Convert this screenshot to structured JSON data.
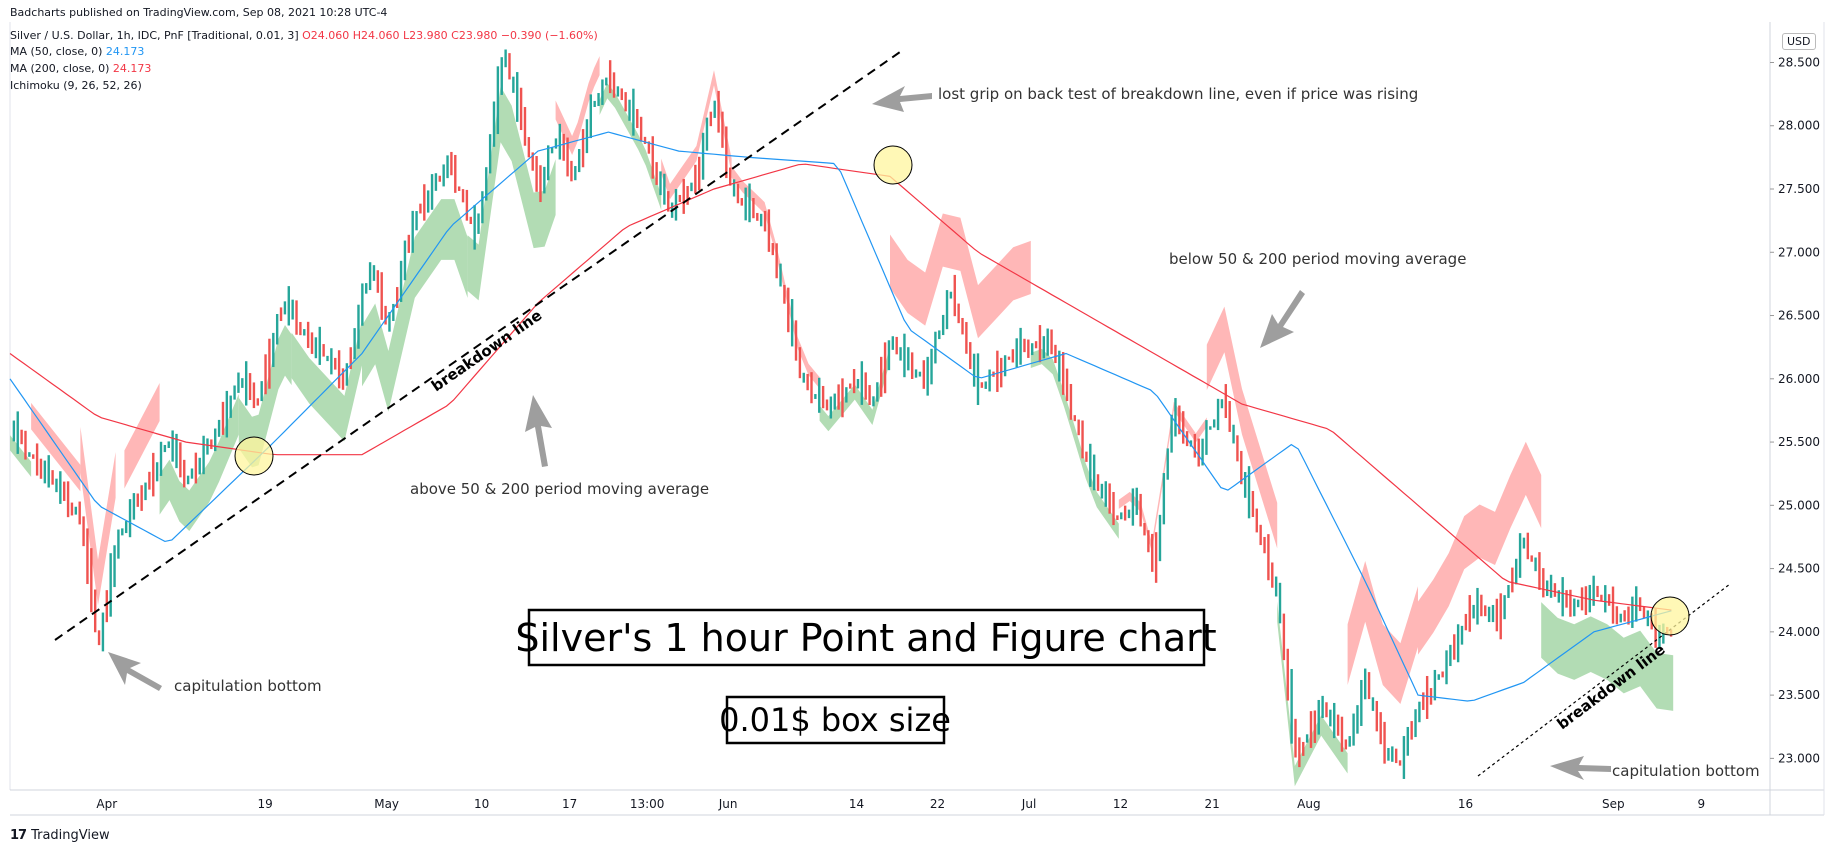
{
  "publisher": "Badcharts published on TradingView.com, Sep 08, 2021 10:28 UTC-4",
  "legend": {
    "symbol": "Silver / U.S. Dollar, 1h, IDC, PnF [Traditional, 0.01, 3]",
    "ohlc": {
      "o": "O24.060",
      "h": "H24.060",
      "l": "L23.980",
      "c": "C23.980",
      "chg": "−0.390 (−1.60%)"
    },
    "ma50": {
      "label": "MA (50, close, 0)",
      "value": "24.173",
      "color": "#2196f3"
    },
    "ma200": {
      "label": "MA (200, close, 0)",
      "value": "24.173",
      "color": "#f23645"
    },
    "ichimoku": {
      "label": "Ichimoku (9, 26, 52, 26)"
    }
  },
  "currency_badge": "USD",
  "footer_brand": "TradingView",
  "colors": {
    "up": "#26a69a",
    "down": "#ef5350",
    "cloud_bull": "#a5d6a7",
    "cloud_bear": "#ffaaaa",
    "ma50": "#2196f3",
    "ma200": "#f23645"
  },
  "annotations": {
    "title": "Silver's 1 hour Point and Figure chart",
    "box_size": "0.01$ box size",
    "lost_grip": "lost grip on back test of breakdown line, even if price was rising",
    "below_ma": "below 50 & 200 period moving average",
    "above_ma": "above 50 & 200 period moving average",
    "cap_bottom_left": "capitulation bottom",
    "cap_bottom_right": "capitulation bottom",
    "breakdown_left": "breakdown line",
    "breakdown_right": "breakdown line"
  },
  "chart_data": {
    "type": "line",
    "title": "Silver's 1 hour Point and Figure chart",
    "x_tick_labels": [
      "Apr",
      "19",
      "May",
      "10",
      "17",
      "13:00",
      "Jun",
      "14",
      "22",
      "Jul",
      "12",
      "21",
      "Aug",
      "16",
      "Sep",
      "9"
    ],
    "x_tick_pos": [
      0.055,
      0.145,
      0.214,
      0.268,
      0.318,
      0.362,
      0.408,
      0.481,
      0.527,
      0.579,
      0.631,
      0.683,
      0.738,
      0.827,
      0.911,
      0.961
    ],
    "y_ticks": [
      "28.500",
      "28.000",
      "27.500",
      "27.000",
      "26.500",
      "26.000",
      "25.500",
      "25.000",
      "24.500",
      "24.000",
      "23.500",
      "23.000"
    ],
    "ylim": [
      22.75,
      28.82
    ],
    "series": [
      {
        "name": "Silver / U.S. Dollar",
        "x": [
          0,
          0.02,
          0.04,
          0.05,
          0.06,
          0.075,
          0.09,
          0.1,
          0.115,
          0.13,
          0.14,
          0.155,
          0.17,
          0.19,
          0.205,
          0.215,
          0.23,
          0.25,
          0.265,
          0.28,
          0.3,
          0.31,
          0.32,
          0.33,
          0.34,
          0.36,
          0.375,
          0.39,
          0.4,
          0.41,
          0.415,
          0.43,
          0.45,
          0.465,
          0.48,
          0.49,
          0.5,
          0.51,
          0.52,
          0.535,
          0.55,
          0.57,
          0.59,
          0.6,
          0.615,
          0.63,
          0.64,
          0.65,
          0.66,
          0.675,
          0.69,
          0.7,
          0.72,
          0.73,
          0.745,
          0.76,
          0.77,
          0.78,
          0.79,
          0.8,
          0.815,
          0.83,
          0.845,
          0.86,
          0.87,
          0.885,
          0.9,
          0.91,
          0.915,
          0.925,
          0.935,
          0.945
        ],
        "values": [
          25.6,
          25.25,
          24.9,
          23.85,
          24.7,
          25.1,
          25.5,
          25.2,
          25.5,
          26.0,
          25.8,
          26.6,
          26.3,
          26.0,
          26.9,
          26.4,
          27.3,
          27.7,
          27.1,
          28.6,
          27.5,
          27.9,
          27.6,
          28.1,
          28.4,
          27.9,
          27.3,
          27.6,
          28.2,
          27.5,
          27.4,
          27.2,
          26.0,
          25.75,
          26.0,
          25.8,
          26.3,
          26.1,
          26.0,
          26.7,
          25.9,
          26.2,
          26.3,
          25.9,
          25.2,
          24.9,
          25.0,
          24.5,
          25.7,
          25.4,
          25.85,
          25.2,
          24.3,
          23.0,
          23.4,
          23.1,
          23.6,
          23.1,
          22.95,
          23.4,
          23.7,
          24.2,
          24.1,
          24.7,
          24.4,
          24.2,
          24.3,
          24.2,
          24.1,
          24.2,
          24.0,
          23.98
        ]
      },
      {
        "name": "MA (50, close, 0)",
        "x": [
          0,
          0.05,
          0.09,
          0.15,
          0.2,
          0.25,
          0.3,
          0.34,
          0.38,
          0.42,
          0.47,
          0.51,
          0.55,
          0.6,
          0.65,
          0.69,
          0.73,
          0.77,
          0.8,
          0.83,
          0.86,
          0.9,
          0.945
        ],
        "values": [
          26.0,
          25.0,
          24.7,
          25.5,
          26.2,
          27.2,
          27.8,
          27.95,
          27.8,
          27.75,
          27.7,
          26.4,
          26.0,
          26.2,
          25.9,
          25.1,
          25.5,
          24.4,
          23.5,
          23.45,
          23.6,
          24.0,
          24.17
        ]
      },
      {
        "name": "MA (200, close, 0)",
        "x": [
          0,
          0.05,
          0.1,
          0.15,
          0.2,
          0.25,
          0.3,
          0.35,
          0.4,
          0.45,
          0.5,
          0.55,
          0.6,
          0.65,
          0.7,
          0.75,
          0.8,
          0.85,
          0.9,
          0.945
        ],
        "values": [
          26.2,
          25.7,
          25.5,
          25.4,
          25.4,
          25.8,
          26.6,
          27.2,
          27.5,
          27.7,
          27.6,
          27.0,
          26.6,
          26.2,
          25.8,
          25.6,
          25.0,
          24.4,
          24.25,
          24.17
        ]
      }
    ],
    "grid": false,
    "legend": "top-left"
  }
}
